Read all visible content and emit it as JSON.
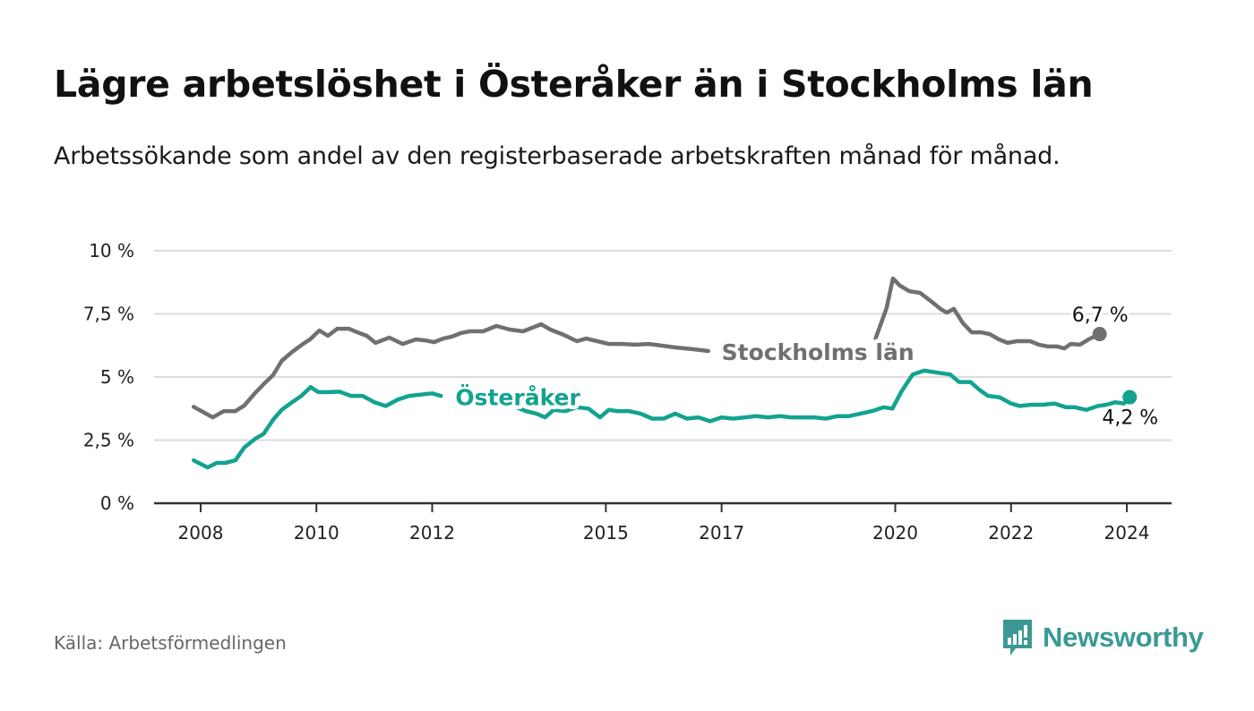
{
  "header": {
    "title": "Lägre arbetslöshet i Österåker än i Stockholms län",
    "subtitle": "Arbetssökande som andel av den registerbaserade arbetskraften månad för månad."
  },
  "footer": {
    "source": "Källa: Arbetsförmedlingen",
    "brand": "Newsworthy",
    "brand_icon": "bar-chart-speech-bubble-icon",
    "brand_color": "#3a9a93"
  },
  "chart_data": {
    "type": "line",
    "title": "Lägre arbetslöshet i Österåker än i Stockholms län",
    "subtitle": "Arbetssökande som andel av den registerbaserade arbetskraften månad för månad.",
    "xlabel": "",
    "ylabel": "",
    "xlim": [
      2008,
      2024
    ],
    "ylim": [
      0,
      10
    ],
    "grid": true,
    "x_ticks": [
      {
        "value": 2008,
        "label": "2008"
      },
      {
        "value": 2010,
        "label": "2010"
      },
      {
        "value": 2012,
        "label": "2012"
      },
      {
        "value": 2015,
        "label": "2015"
      },
      {
        "value": 2017,
        "label": "2017"
      },
      {
        "value": 2020,
        "label": "2020"
      },
      {
        "value": 2022,
        "label": "2022"
      },
      {
        "value": 2024,
        "label": "2024"
      }
    ],
    "y_ticks": [
      {
        "value": 0,
        "label": "0 %"
      },
      {
        "value": 2.5,
        "label": "2,5 %"
      },
      {
        "value": 5,
        "label": "5 %"
      },
      {
        "value": 7.5,
        "label": "7,5 %"
      },
      {
        "value": 10,
        "label": "10 %"
      }
    ],
    "series": [
      {
        "name": "Stockholms län",
        "color": "#707070",
        "inline_label": {
          "text": "Stockholms län",
          "x": 2017.0,
          "y": 6.0
        },
        "end_label": "6,7 %",
        "end_value": 6.7,
        "x": [
          2007.88,
          2008.21,
          2008.4,
          2008.6,
          2008.75,
          2008.94,
          2009.09,
          2009.25,
          2009.4,
          2009.58,
          2009.75,
          2009.89,
          2010.05,
          2010.2,
          2010.36,
          2010.56,
          2010.71,
          2010.87,
          2011.02,
          2011.26,
          2011.49,
          2011.72,
          2011.88,
          2012.03,
          2012.19,
          2012.34,
          2012.5,
          2012.65,
          2012.88,
          2013.11,
          2013.34,
          2013.57,
          2013.73,
          2013.88,
          2014.04,
          2014.27,
          2014.5,
          2014.66,
          2014.85,
          2015.05,
          2015.28,
          2015.51,
          2015.74,
          2015.97,
          2016.2,
          2016.51,
          2016.77,
          2019.66,
          2019.85,
          2019.96,
          2020.08,
          2020.24,
          2020.43,
          2020.63,
          2020.78,
          2020.89,
          2021.01,
          2021.17,
          2021.32,
          2021.48,
          2021.63,
          2021.79,
          2021.94,
          2022.1,
          2022.33,
          2022.48,
          2022.64,
          2022.8,
          2022.92,
          2023.03,
          2023.19,
          2023.34,
          2023.53
        ],
        "y": [
          3.82,
          3.4,
          3.65,
          3.65,
          3.86,
          4.36,
          4.72,
          5.07,
          5.64,
          5.99,
          6.28,
          6.49,
          6.84,
          6.63,
          6.91,
          6.91,
          6.77,
          6.63,
          6.35,
          6.56,
          6.31,
          6.49,
          6.45,
          6.38,
          6.52,
          6.6,
          6.74,
          6.81,
          6.81,
          7.02,
          6.88,
          6.81,
          6.95,
          7.09,
          6.88,
          6.67,
          6.42,
          6.52,
          6.42,
          6.31,
          6.31,
          6.28,
          6.31,
          6.24,
          6.17,
          6.1,
          6.03,
          6.52,
          7.73,
          8.9,
          8.62,
          8.4,
          8.33,
          7.98,
          7.7,
          7.55,
          7.7,
          7.13,
          6.77,
          6.77,
          6.7,
          6.49,
          6.35,
          6.42,
          6.42,
          6.28,
          6.21,
          6.21,
          6.13,
          6.31,
          6.28,
          6.49,
          6.7
        ],
        "gaps_after_index": [
          46
        ]
      },
      {
        "name": "Österåker",
        "color": "#12a38f",
        "inline_label": {
          "text": "Österåker",
          "x": 2012.4,
          "y": 4.2
        },
        "end_label": "4,2 %",
        "end_value": 4.2,
        "x": [
          2007.88,
          2008.12,
          2008.28,
          2008.43,
          2008.6,
          2008.75,
          2008.94,
          2009.09,
          2009.25,
          2009.4,
          2009.58,
          2009.74,
          2009.9,
          2010.03,
          2010.2,
          2010.4,
          2010.6,
          2010.8,
          2011.0,
          2011.2,
          2011.4,
          2011.6,
          2011.8,
          2012.0,
          2012.15,
          2013.45,
          2013.62,
          2013.8,
          2013.95,
          2014.1,
          2014.3,
          2014.5,
          2014.7,
          2014.9,
          2015.05,
          2015.2,
          2015.4,
          2015.6,
          2015.8,
          2016.0,
          2016.2,
          2016.4,
          2016.6,
          2016.8,
          2017.0,
          2017.2,
          2017.4,
          2017.6,
          2017.8,
          2018.0,
          2018.2,
          2018.4,
          2018.6,
          2018.8,
          2019.0,
          2019.2,
          2019.4,
          2019.6,
          2019.8,
          2019.95,
          2020.1,
          2020.3,
          2020.5,
          2020.65,
          2020.8,
          2020.95,
          2021.1,
          2021.3,
          2021.45,
          2021.6,
          2021.8,
          2022.0,
          2022.15,
          2022.35,
          2022.55,
          2022.75,
          2022.95,
          2023.1,
          2023.3,
          2023.5,
          2023.65,
          2023.8,
          2023.95,
          2024.05
        ],
        "y": [
          1.7,
          1.42,
          1.6,
          1.6,
          1.7,
          2.2,
          2.55,
          2.75,
          3.3,
          3.7,
          4.0,
          4.25,
          4.6,
          4.4,
          4.4,
          4.42,
          4.25,
          4.25,
          4.0,
          3.85,
          4.1,
          4.25,
          4.3,
          4.35,
          4.25,
          3.8,
          3.65,
          3.55,
          3.4,
          3.7,
          3.65,
          3.8,
          3.75,
          3.4,
          3.7,
          3.65,
          3.65,
          3.55,
          3.35,
          3.35,
          3.55,
          3.35,
          3.4,
          3.25,
          3.4,
          3.35,
          3.4,
          3.45,
          3.4,
          3.45,
          3.4,
          3.4,
          3.4,
          3.35,
          3.45,
          3.45,
          3.55,
          3.65,
          3.8,
          3.75,
          4.4,
          5.1,
          5.25,
          5.2,
          5.15,
          5.1,
          4.8,
          4.8,
          4.5,
          4.25,
          4.2,
          3.95,
          3.85,
          3.9,
          3.9,
          3.95,
          3.8,
          3.8,
          3.7,
          3.85,
          3.9,
          4.0,
          3.95,
          4.2
        ],
        "gaps_after_index": [
          24
        ]
      }
    ]
  }
}
